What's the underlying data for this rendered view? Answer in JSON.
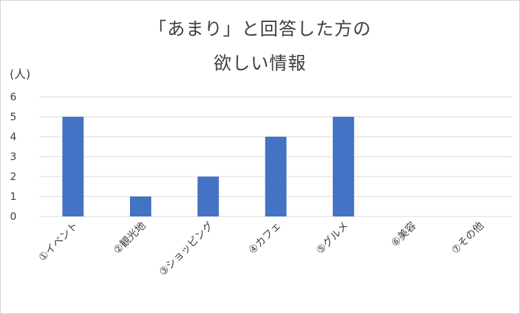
{
  "chart_data": {
    "type": "bar",
    "title_lines": [
      "「あまり」と回答した方の",
      "欲しい情報"
    ],
    "ylabel": "(人)",
    "xlabel": "",
    "categories": [
      "①イベント",
      "②観光地",
      "③ショッピング",
      "④カフェ",
      "⑤グルメ",
      "⑥美容",
      "⑦その他"
    ],
    "values": [
      5,
      1,
      2,
      4,
      5,
      0,
      0
    ],
    "ylim": [
      0,
      6
    ],
    "yticks": [
      "0",
      "1",
      "2",
      "3",
      "4",
      "5",
      "6"
    ],
    "grid": true,
    "legend": "none",
    "bar_color": "#4472c4",
    "grid_color": "#d9d9d9"
  }
}
